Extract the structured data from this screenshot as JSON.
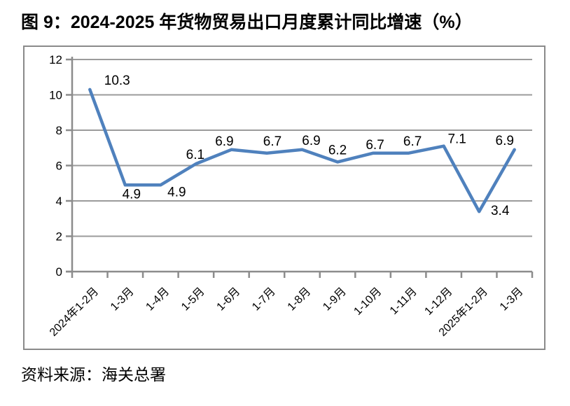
{
  "page": {
    "source": "资料来源：海关总署"
  },
  "chart_data": {
    "type": "line",
    "title": "图 9：2024-2025 年货物贸易出口月度累计同比增速（%）",
    "categories": [
      "2024年1-2月",
      "1-3月",
      "1-4月",
      "1-5月",
      "1-6月",
      "1-7月",
      "1-8月",
      "1-9月",
      "1-10月",
      "1-11月",
      "1-12月",
      "2025年1-2月",
      "1-3月"
    ],
    "values": [
      10.3,
      4.9,
      4.9,
      6.1,
      6.9,
      6.7,
      6.9,
      6.2,
      6.7,
      6.7,
      7.1,
      3.4,
      6.9
    ],
    "data_labels": [
      "10.3",
      "4.9",
      "4.9",
      "6.1",
      "6.9",
      "6.7",
      "6.9",
      "6.2",
      "6.7",
      "6.7",
      "7.1",
      "3.4",
      "6.9"
    ],
    "xlabel": "",
    "ylabel": "",
    "ylim": [
      0,
      12
    ],
    "yticks": [
      0,
      2,
      4,
      6,
      8,
      10,
      12
    ],
    "grid": "horizontal",
    "legend_position": "none",
    "colors": {
      "line": "#4f81bd",
      "gridline": "#9b9b9b",
      "axis": "#8c8c8c",
      "tick_label": "#000000",
      "data_label": "#000000"
    }
  }
}
